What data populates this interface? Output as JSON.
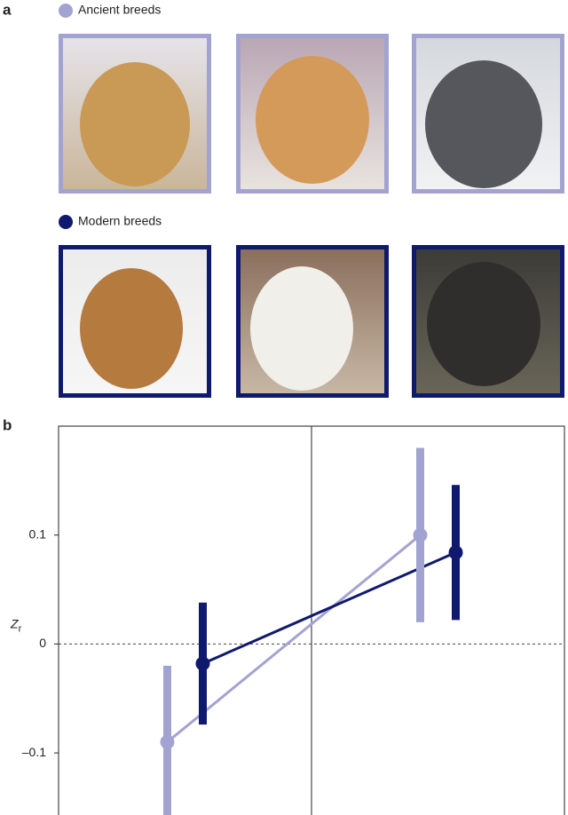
{
  "panel_labels": [
    "a",
    "b"
  ],
  "chart_data": {
    "type": "line",
    "y_label": {
      "main": "Z",
      "sub": "r"
    },
    "categories": [
      null,
      null
    ],
    "series": [
      {
        "name": "Ancient breeds",
        "color": "#a3a3d2",
        "values": [
          -0.09,
          0.1
        ],
        "errors": [
          0.07,
          0.08
        ]
      },
      {
        "name": "Modern breeds",
        "color": "#0f1a6e",
        "values": [
          -0.018,
          0.084
        ],
        "errors": [
          0.056,
          0.062
        ]
      }
    ],
    "ylim": [
      -0.157,
      0.2
    ],
    "yticks": [
      {
        "value": -0.1,
        "label": "–0.1"
      },
      0,
      0.1
    ],
    "zero_line": true
  }
}
